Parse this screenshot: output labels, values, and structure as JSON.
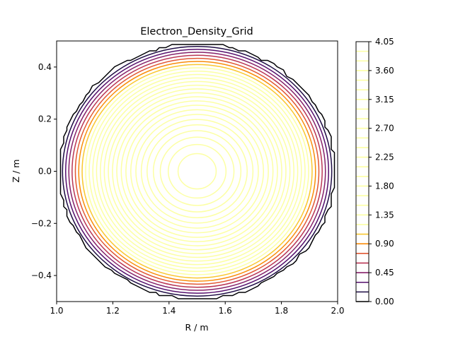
{
  "chart_data": {
    "type": "contour",
    "title": "Electron_Density_Grid",
    "xlabel": "R / m",
    "ylabel": "Z / m",
    "xlim": [
      1.0,
      2.0
    ],
    "ylim": [
      -0.5,
      0.5
    ],
    "x_ticks": [
      1.0,
      1.2,
      1.4,
      1.6,
      1.8,
      2.0
    ],
    "x_tick_labels": [
      "1.0",
      "1.2",
      "1.4",
      "1.6",
      "1.8",
      "2.0"
    ],
    "y_ticks": [
      -0.4,
      -0.2,
      0.0,
      0.2,
      0.4
    ],
    "y_tick_labels": [
      "−0.4",
      "−0.2",
      "0.0",
      "0.2",
      "0.4"
    ],
    "colormap": "inferno",
    "grid": false,
    "center": {
      "R": 1.5,
      "Z": 0.0
    },
    "boundary_radius": {
      "R": 0.49,
      "Z": 0.49
    },
    "peak_value": 4.05,
    "levels_min": 0.0,
    "levels_max": 4.05,
    "level_step": 0.15,
    "colorbar": {
      "ticks": [
        0.0,
        0.45,
        0.9,
        1.35,
        1.8,
        2.25,
        2.7,
        3.15,
        3.6,
        4.05
      ],
      "tick_labels": [
        "0.00",
        "0.45",
        "0.90",
        "1.35",
        "1.80",
        "2.25",
        "2.70",
        "3.15",
        "3.60",
        "4.05"
      ]
    }
  }
}
